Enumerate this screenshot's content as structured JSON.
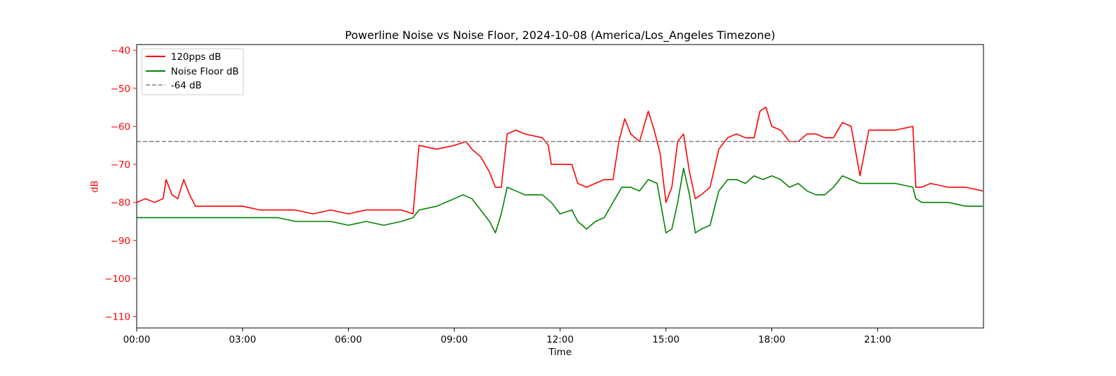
{
  "chart_data": {
    "type": "line",
    "title": "Powerline Noise vs Noise Floor, 2024-10-08 (America/Los_Angeles Timezone)",
    "xlabel": "Time",
    "ylabel": "dB",
    "xlim": [
      "00:00",
      "24:00"
    ],
    "ylim": [
      -113,
      -38.5
    ],
    "x_ticks": [
      "00:00",
      "03:00",
      "06:00",
      "09:00",
      "12:00",
      "15:00",
      "18:00",
      "21:00"
    ],
    "y_ticks": [
      -40,
      -50,
      -60,
      -70,
      -80,
      -90,
      -100,
      -110
    ],
    "grid": false,
    "legend_position": "top-left",
    "ylabel_color": "#ff0000",
    "series": [
      {
        "name": "120pps dB",
        "color": "#ff0000",
        "style": "solid",
        "points": [
          [
            "00:00",
            -80
          ],
          [
            "00:15",
            -79
          ],
          [
            "00:30",
            -80
          ],
          [
            "00:45",
            -79
          ],
          [
            "00:50",
            -74
          ],
          [
            "01:00",
            -78
          ],
          [
            "01:10",
            -79
          ],
          [
            "01:20",
            -74
          ],
          [
            "01:30",
            -78
          ],
          [
            "01:40",
            -81
          ],
          [
            "02:00",
            -81
          ],
          [
            "02:30",
            -81
          ],
          [
            "03:00",
            -81
          ],
          [
            "03:30",
            -82
          ],
          [
            "04:00",
            -82
          ],
          [
            "04:30",
            -82
          ],
          [
            "05:00",
            -83
          ],
          [
            "05:30",
            -82
          ],
          [
            "06:00",
            -83
          ],
          [
            "06:30",
            -82
          ],
          [
            "07:00",
            -82
          ],
          [
            "07:30",
            -82
          ],
          [
            "07:50",
            -83
          ],
          [
            "08:00",
            -65
          ],
          [
            "08:30",
            -66
          ],
          [
            "09:00",
            -65
          ],
          [
            "09:20",
            -64
          ],
          [
            "09:30",
            -66
          ],
          [
            "09:45",
            -68
          ],
          [
            "10:00",
            -72
          ],
          [
            "10:10",
            -76
          ],
          [
            "10:20",
            -76
          ],
          [
            "10:30",
            -62
          ],
          [
            "10:45",
            -61
          ],
          [
            "11:00",
            -62
          ],
          [
            "11:30",
            -63
          ],
          [
            "11:40",
            -65
          ],
          [
            "11:45",
            -70
          ],
          [
            "12:00",
            -70
          ],
          [
            "12:20",
            -70
          ],
          [
            "12:30",
            -75
          ],
          [
            "12:45",
            -76
          ],
          [
            "13:00",
            -75
          ],
          [
            "13:15",
            -74
          ],
          [
            "13:30",
            -74
          ],
          [
            "13:40",
            -64
          ],
          [
            "13:50",
            -58
          ],
          [
            "14:00",
            -62
          ],
          [
            "14:15",
            -64
          ],
          [
            "14:30",
            -56
          ],
          [
            "14:40",
            -61
          ],
          [
            "14:50",
            -67
          ],
          [
            "15:00",
            -80
          ],
          [
            "15:10",
            -76
          ],
          [
            "15:20",
            -64
          ],
          [
            "15:30",
            -62
          ],
          [
            "15:40",
            -72
          ],
          [
            "15:50",
            -79
          ],
          [
            "16:00",
            -78
          ],
          [
            "16:15",
            -76
          ],
          [
            "16:30",
            -66
          ],
          [
            "16:45",
            -63
          ],
          [
            "17:00",
            -62
          ],
          [
            "17:15",
            -63
          ],
          [
            "17:30",
            -63
          ],
          [
            "17:40",
            -56
          ],
          [
            "17:50",
            -55
          ],
          [
            "18:00",
            -60
          ],
          [
            "18:15",
            -61
          ],
          [
            "18:30",
            -64
          ],
          [
            "18:45",
            -64
          ],
          [
            "19:00",
            -62
          ],
          [
            "19:15",
            -62
          ],
          [
            "19:30",
            -63
          ],
          [
            "19:45",
            -63
          ],
          [
            "20:00",
            -59
          ],
          [
            "20:15",
            -60
          ],
          [
            "20:30",
            -73
          ],
          [
            "20:45",
            -61
          ],
          [
            "21:00",
            -61
          ],
          [
            "21:30",
            -61
          ],
          [
            "22:00",
            -60
          ],
          [
            "22:05",
            -76
          ],
          [
            "22:15",
            -76
          ],
          [
            "22:30",
            -75
          ],
          [
            "23:00",
            -76
          ],
          [
            "23:30",
            -76
          ],
          [
            "23:59",
            -77
          ]
        ]
      },
      {
        "name": "Noise Floor dB",
        "color": "#008000",
        "style": "solid",
        "points": [
          [
            "00:00",
            -84
          ],
          [
            "00:30",
            -84
          ],
          [
            "01:00",
            -84
          ],
          [
            "02:00",
            -84
          ],
          [
            "03:00",
            -84
          ],
          [
            "04:00",
            -84
          ],
          [
            "04:30",
            -85
          ],
          [
            "05:00",
            -85
          ],
          [
            "05:30",
            -85
          ],
          [
            "06:00",
            -86
          ],
          [
            "06:30",
            -85
          ],
          [
            "07:00",
            -86
          ],
          [
            "07:30",
            -85
          ],
          [
            "07:50",
            -84
          ],
          [
            "08:00",
            -82
          ],
          [
            "08:30",
            -81
          ],
          [
            "09:00",
            -79
          ],
          [
            "09:15",
            -78
          ],
          [
            "09:30",
            -79
          ],
          [
            "09:45",
            -82
          ],
          [
            "10:00",
            -85
          ],
          [
            "10:10",
            -88
          ],
          [
            "10:20",
            -83
          ],
          [
            "10:30",
            -76
          ],
          [
            "10:45",
            -77
          ],
          [
            "11:00",
            -78
          ],
          [
            "11:30",
            -78
          ],
          [
            "11:45",
            -80
          ],
          [
            "12:00",
            -83
          ],
          [
            "12:20",
            -82
          ],
          [
            "12:30",
            -85
          ],
          [
            "12:45",
            -87
          ],
          [
            "13:00",
            -85
          ],
          [
            "13:15",
            -84
          ],
          [
            "13:30",
            -80
          ],
          [
            "13:45",
            -76
          ],
          [
            "14:00",
            -76
          ],
          [
            "14:15",
            -77
          ],
          [
            "14:30",
            -74
          ],
          [
            "14:45",
            -75
          ],
          [
            "15:00",
            -88
          ],
          [
            "15:10",
            -87
          ],
          [
            "15:20",
            -80
          ],
          [
            "15:30",
            -71
          ],
          [
            "15:40",
            -78
          ],
          [
            "15:50",
            -88
          ],
          [
            "16:00",
            -87
          ],
          [
            "16:15",
            -86
          ],
          [
            "16:30",
            -77
          ],
          [
            "16:45",
            -74
          ],
          [
            "17:00",
            -74
          ],
          [
            "17:15",
            -75
          ],
          [
            "17:30",
            -73
          ],
          [
            "17:45",
            -74
          ],
          [
            "18:00",
            -73
          ],
          [
            "18:15",
            -74
          ],
          [
            "18:30",
            -76
          ],
          [
            "18:45",
            -75
          ],
          [
            "19:00",
            -77
          ],
          [
            "19:15",
            -78
          ],
          [
            "19:30",
            -78
          ],
          [
            "19:45",
            -76
          ],
          [
            "20:00",
            -73
          ],
          [
            "20:15",
            -74
          ],
          [
            "20:30",
            -75
          ],
          [
            "20:45",
            -75
          ],
          [
            "21:00",
            -75
          ],
          [
            "21:30",
            -75
          ],
          [
            "22:00",
            -76
          ],
          [
            "22:05",
            -79
          ],
          [
            "22:15",
            -80
          ],
          [
            "22:30",
            -80
          ],
          [
            "23:00",
            -80
          ],
          [
            "23:30",
            -81
          ],
          [
            "23:59",
            -81
          ]
        ]
      },
      {
        "name": "-64 dB",
        "color": "#808080",
        "style": "dashed",
        "value": -64
      }
    ]
  }
}
